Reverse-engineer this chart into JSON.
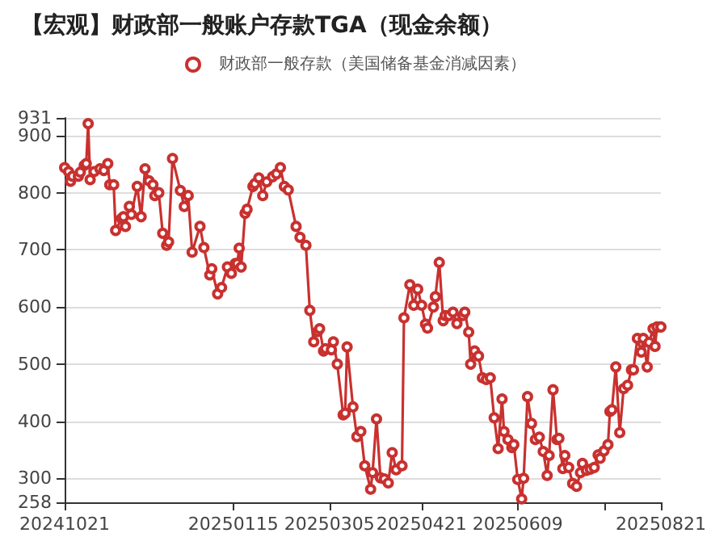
{
  "chart_data": {
    "type": "line",
    "title": "【宏观】财政部一般账户存款TGA（现金余额）",
    "series": [
      {
        "name": "财政部一般存款（美国储备基金消减因素）",
        "color": "#c8312f",
        "x": [
          "2024-10-21",
          "2024-10-23",
          "2024-10-24",
          "2024-10-25",
          "2024-10-28",
          "2024-10-29",
          "2024-10-31",
          "2024-11-01",
          "2024-11-02",
          "2024-11-03",
          "2024-11-05",
          "2024-11-08",
          "2024-11-10",
          "2024-11-12",
          "2024-11-13",
          "2024-11-15",
          "2024-11-16",
          "2024-11-19",
          "2024-11-20",
          "2024-11-21",
          "2024-11-23",
          "2024-11-24",
          "2024-11-27",
          "2024-11-29",
          "2024-12-01",
          "2024-12-03",
          "2024-12-05",
          "2024-12-06",
          "2024-12-08",
          "2024-12-10",
          "2024-12-12",
          "2024-12-13",
          "2024-12-15",
          "2024-12-19",
          "2024-12-21",
          "2024-12-23",
          "2024-12-25",
          "2024-12-29",
          "2024-12-31",
          "2025-01-03",
          "2025-01-04",
          "2025-01-07",
          "2025-01-09",
          "2025-01-12",
          "2025-01-14",
          "2025-01-16",
          "2025-01-17",
          "2025-01-18",
          "2025-01-19",
          "2025-01-21",
          "2025-01-22",
          "2025-01-25",
          "2025-01-26",
          "2025-01-28",
          "2025-01-30",
          "2025-02-01",
          "2025-02-04",
          "2025-02-06",
          "2025-02-08",
          "2025-02-10",
          "2025-02-12",
          "2025-02-16",
          "2025-02-18",
          "2025-02-21",
          "2025-02-23",
          "2025-02-25",
          "2025-02-27",
          "2025-02-28",
          "2025-03-02",
          "2025-03-03",
          "2025-03-06",
          "2025-03-07",
          "2025-03-09",
          "2025-03-12",
          "2025-03-13",
          "2025-03-14",
          "2025-03-17",
          "2025-03-19",
          "2025-03-21",
          "2025-03-23",
          "2025-03-26",
          "2025-03-27",
          "2025-03-29",
          "2025-03-31",
          "2025-04-02",
          "2025-04-04",
          "2025-04-06",
          "2025-04-08",
          "2025-04-11",
          "2025-04-12",
          "2025-04-15",
          "2025-04-17",
          "2025-04-19",
          "2025-04-21",
          "2025-04-23",
          "2025-04-24",
          "2025-04-27",
          "2025-04-28",
          "2025-04-30",
          "2025-05-02",
          "2025-05-03",
          "2025-05-05",
          "2025-05-07",
          "2025-05-09",
          "2025-05-12",
          "2025-05-13",
          "2025-05-15",
          "2025-05-16",
          "2025-05-18",
          "2025-05-20",
          "2025-05-22",
          "2025-05-24",
          "2025-05-26",
          "2025-05-28",
          "2025-05-30",
          "2025-06-01",
          "2025-06-02",
          "2025-06-04",
          "2025-06-06",
          "2025-06-07",
          "2025-06-09",
          "2025-06-11",
          "2025-06-12",
          "2025-06-14",
          "2025-06-16",
          "2025-06-18",
          "2025-06-20",
          "2025-06-22",
          "2025-06-24",
          "2025-06-25",
          "2025-06-27",
          "2025-06-29",
          "2025-06-30",
          "2025-07-02",
          "2025-07-03",
          "2025-07-05",
          "2025-07-07",
          "2025-07-09",
          "2025-07-11",
          "2025-07-12",
          "2025-07-14",
          "2025-07-16",
          "2025-07-18",
          "2025-07-20",
          "2025-07-21",
          "2025-07-23",
          "2025-07-25",
          "2025-07-26",
          "2025-07-27",
          "2025-07-29",
          "2025-07-31",
          "2025-08-02",
          "2025-08-04",
          "2025-08-06",
          "2025-08-07",
          "2025-08-09",
          "2025-08-11",
          "2025-08-12",
          "2025-08-14",
          "2025-08-15",
          "2025-08-17",
          "2025-08-18",
          "2025-08-19",
          "2025-08-21"
        ],
        "values": [
          844,
          837,
          820,
          829,
          829,
          836,
          848,
          851,
          921,
          823,
          837,
          842,
          839,
          851,
          814,
          814,
          734,
          755,
          758,
          741,
          776,
          762,
          811,
          758,
          842,
          821,
          814,
          795,
          800,
          729,
          708,
          714,
          860,
          804,
          776,
          795,
          696,
          741,
          704,
          656,
          667,
          623,
          634,
          670,
          659,
          676,
          676,
          703,
          670,
          764,
          771,
          811,
          816,
          826,
          795,
          819,
          828,
          833,
          844,
          811,
          805,
          741,
          722,
          708,
          594,
          539,
          557,
          562,
          523,
          527,
          525,
          539,
          500,
          411,
          414,
          530,
          425,
          373,
          382,
          322,
          281,
          310,
          404,
          301,
          299,
          292,
          345,
          315,
          322,
          581,
          639,
          603,
          631,
          603,
          570,
          563,
          600,
          618,
          678,
          576,
          585,
          585,
          591,
          571,
          585,
          591,
          556,
          500,
          523,
          514,
          476,
          473,
          476,
          406,
          352,
          439,
          382,
          368,
          354,
          359,
          298,
          264,
          300,
          443,
          396,
          368,
          372,
          347,
          305,
          340,
          455,
          368,
          370,
          317,
          340,
          319,
          291,
          286,
          310,
          326,
          314,
          316,
          319,
          341,
          335,
          348,
          359,
          417,
          420,
          495,
          380,
          457,
          463,
          490,
          490,
          545,
          521,
          545,
          495,
          538,
          562,
          531,
          565,
          565
        ]
      }
    ],
    "xlim": [
      "2024-10-21",
      "2025-08-21"
    ],
    "xticks": [
      {
        "value": "2024-10-21",
        "label": "20241021"
      },
      {
        "value": "2025-01-15",
        "label": "20250115"
      },
      {
        "value": "2025-03-05",
        "label": "20250305"
      },
      {
        "value": "2025-04-21",
        "label": "20250421"
      },
      {
        "value": "2025-06-09",
        "label": "20250609"
      },
      {
        "value": "2025-07-23",
        "label": null
      },
      {
        "value": "2025-08-21",
        "label": "20250821"
      }
    ],
    "ylim": [
      258,
      931
    ],
    "yticks": [
      258,
      300,
      400,
      500,
      600,
      700,
      800,
      900,
      931
    ],
    "grid": "y",
    "legend": "top",
    "marker": "circle",
    "line_style": "solid"
  }
}
